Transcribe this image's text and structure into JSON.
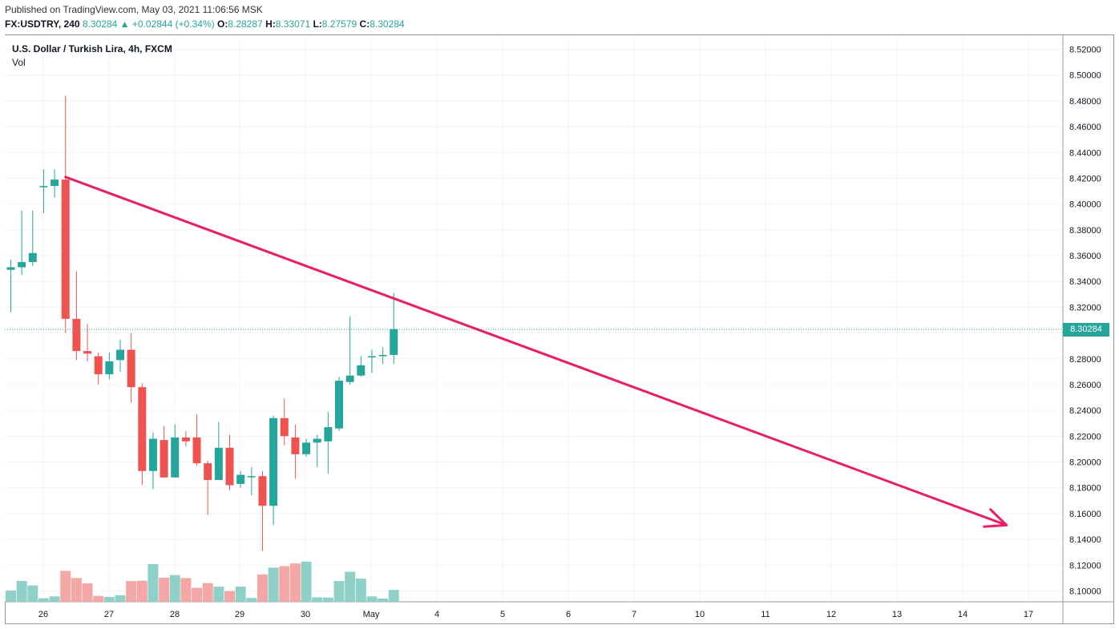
{
  "header": {
    "published": "Published on TradingView.com, May 03, 2021 11:06:56 MSK",
    "symbol": "FX:USDTRY, 240",
    "last": "8.30284",
    "change": "▲ +0.02844 (+0.34%)",
    "o_label": "O:",
    "o": "8.28287",
    "h_label": "H:",
    "h": "8.33071",
    "l_label": "L:",
    "l": "8.27579",
    "c_label": "C:",
    "c": "8.30284"
  },
  "legend": {
    "title": "U.S. Dollar / Turkish Lira, 4h, FXCM",
    "volume_label": "Vol"
  },
  "colors": {
    "up": "#26a69a",
    "down": "#ef5350",
    "up_vol": "#8fd0c8",
    "down_vol": "#f5a7a5",
    "trendline": "#e91e63",
    "grid": "#f0f3fa"
  },
  "chart_data": {
    "type": "candlestick",
    "title": "U.S. Dollar / Turkish Lira, 4h, FXCM",
    "ylim": [
      8.095,
      8.525
    ],
    "y_ticks": [
      "8.52000",
      "8.50000",
      "8.48000",
      "8.46000",
      "8.44000",
      "8.42000",
      "8.40000",
      "8.38000",
      "8.36000",
      "8.34000",
      "8.32000",
      "8.30000",
      "8.28000",
      "8.26000",
      "8.24000",
      "8.22000",
      "8.20000",
      "8.18000",
      "8.16000",
      "8.14000",
      "8.12000",
      "8.10000"
    ],
    "x_ticks": [
      "26",
      "27",
      "28",
      "29",
      "30",
      "May",
      "4",
      "5",
      "6",
      "7",
      "10",
      "11",
      "12",
      "13",
      "14",
      "17"
    ],
    "last_price": "8.30284",
    "candles": [
      {
        "o": 8.349,
        "h": 8.357,
        "l": 8.316,
        "c": 8.351
      },
      {
        "o": 8.351,
        "h": 8.395,
        "l": 8.345,
        "c": 8.355
      },
      {
        "o": 8.355,
        "h": 8.395,
        "l": 8.352,
        "c": 8.362
      },
      {
        "o": 8.413,
        "h": 8.427,
        "l": 8.393,
        "c": 8.414
      },
      {
        "o": 8.414,
        "h": 8.427,
        "l": 8.405,
        "c": 8.419
      },
      {
        "o": 8.419,
        "h": 8.484,
        "l": 8.3,
        "c": 8.311
      },
      {
        "o": 8.311,
        "h": 8.348,
        "l": 8.279,
        "c": 8.286
      },
      {
        "o": 8.286,
        "h": 8.307,
        "l": 8.278,
        "c": 8.284
      },
      {
        "o": 8.282,
        "h": 8.285,
        "l": 8.26,
        "c": 8.268
      },
      {
        "o": 8.268,
        "h": 8.285,
        "l": 8.264,
        "c": 8.278
      },
      {
        "o": 8.279,
        "h": 8.295,
        "l": 8.27,
        "c": 8.287
      },
      {
        "o": 8.287,
        "h": 8.3,
        "l": 8.246,
        "c": 8.258
      },
      {
        "o": 8.258,
        "h": 8.261,
        "l": 8.182,
        "c": 8.193
      },
      {
        "o": 8.193,
        "h": 8.223,
        "l": 8.179,
        "c": 8.218
      },
      {
        "o": 8.217,
        "h": 8.228,
        "l": 8.188,
        "c": 8.188
      },
      {
        "o": 8.188,
        "h": 8.229,
        "l": 8.188,
        "c": 8.219
      },
      {
        "o": 8.219,
        "h": 8.224,
        "l": 8.212,
        "c": 8.216
      },
      {
        "o": 8.219,
        "h": 8.237,
        "l": 8.197,
        "c": 8.199
      },
      {
        "o": 8.199,
        "h": 8.201,
        "l": 8.159,
        "c": 8.186
      },
      {
        "o": 8.186,
        "h": 8.231,
        "l": 8.186,
        "c": 8.211
      },
      {
        "o": 8.211,
        "h": 8.221,
        "l": 8.178,
        "c": 8.182
      },
      {
        "o": 8.183,
        "h": 8.193,
        "l": 8.18,
        "c": 8.19
      },
      {
        "o": 8.189,
        "h": 8.196,
        "l": 8.174,
        "c": 8.189
      },
      {
        "o": 8.189,
        "h": 8.193,
        "l": 8.131,
        "c": 8.166
      },
      {
        "o": 8.166,
        "h": 8.236,
        "l": 8.151,
        "c": 8.234
      },
      {
        "o": 8.234,
        "h": 8.249,
        "l": 8.213,
        "c": 8.22
      },
      {
        "o": 8.219,
        "h": 8.229,
        "l": 8.187,
        "c": 8.206
      },
      {
        "o": 8.206,
        "h": 8.218,
        "l": 8.204,
        "c": 8.215
      },
      {
        "o": 8.215,
        "h": 8.221,
        "l": 8.196,
        "c": 8.218
      },
      {
        "o": 8.216,
        "h": 8.239,
        "l": 8.191,
        "c": 8.227
      },
      {
        "o": 8.226,
        "h": 8.266,
        "l": 8.224,
        "c": 8.263
      },
      {
        "o": 8.262,
        "h": 8.313,
        "l": 8.26,
        "c": 8.267
      },
      {
        "o": 8.267,
        "h": 8.282,
        "l": 8.266,
        "c": 8.275
      },
      {
        "o": 8.282,
        "h": 8.287,
        "l": 8.269,
        "c": 8.282
      },
      {
        "o": 8.282,
        "h": 8.289,
        "l": 8.276,
        "c": 8.283
      },
      {
        "o": 8.283,
        "h": 8.331,
        "l": 8.276,
        "c": 8.303
      }
    ],
    "volume_ylim": [
      0,
      135
    ],
    "volumes": [
      38,
      70,
      55,
      12,
      18,
      104,
      80,
      62,
      20,
      16,
      22,
      70,
      71,
      127,
      81,
      90,
      80,
      47,
      63,
      51,
      36,
      51,
      13,
      92,
      115,
      120,
      129,
      148,
      15,
      14,
      70,
      101,
      78,
      18,
      11,
      40
    ],
    "trendline": {
      "from": {
        "bar": 5,
        "price": 8.421
      },
      "to": {
        "bar": 91,
        "price": 8.151
      },
      "arrow": true
    }
  }
}
